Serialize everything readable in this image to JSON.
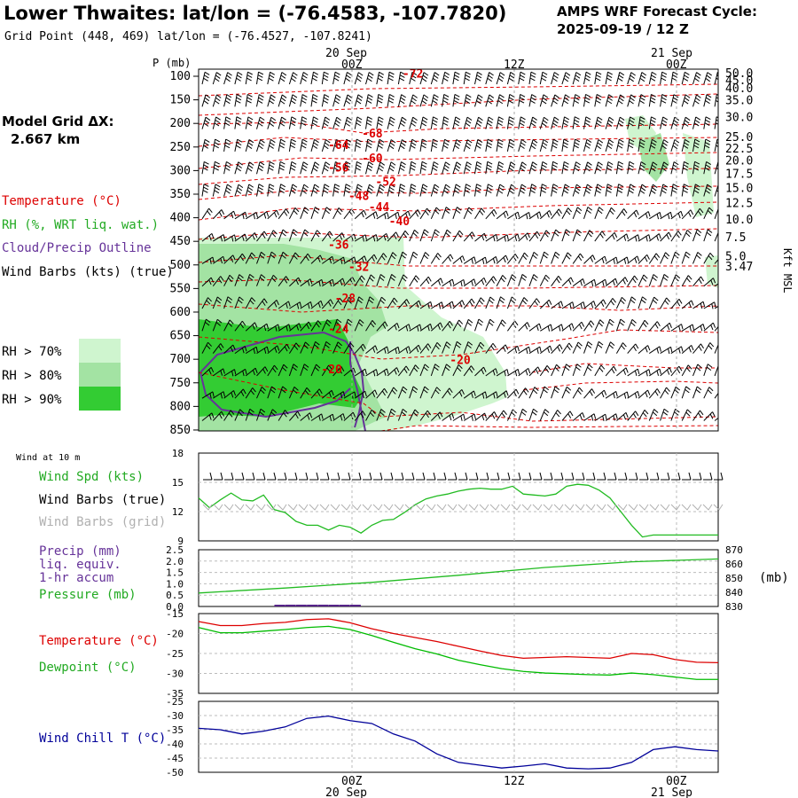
{
  "header": {
    "title": "Lower Thwaites:  lat/lon = (-76.4583, -107.7820)",
    "grid_point": "Grid Point (448, 469) lat/lon = (-76.4527, -107.8241)",
    "cycle_line1": "AMPS WRF Forecast Cycle:",
    "cycle_line2": "2025-09-19 / 12  Z"
  },
  "model_grid": {
    "label": "Model Grid ΔX:",
    "value": "2.667 km"
  },
  "legend": {
    "temperature": "Temperature (°C)",
    "rh": "RH (%, WRT liq. wat.)",
    "cloud": "Cloud/Precip Outline",
    "wind": "Wind Barbs (kts) (true)",
    "rh70": "RH > 70%",
    "rh80": "RH > 80%",
    "rh90": "RH > 90%"
  },
  "time_axis": {
    "top_dates": [
      "20 Sep",
      "21 Sep"
    ],
    "ticks": [
      "00Z",
      "12Z",
      "00Z"
    ],
    "bottom_dates": [
      "20 Sep",
      "21 Sep"
    ]
  },
  "colors": {
    "temperature": "#dd0000",
    "dewpoint": "#00bb00",
    "wind_speed": "#22bb22",
    "pressure": "#22bb22",
    "precip": "#552288",
    "wind_chill": "#000099",
    "rh70": "#cff5cf",
    "rh80": "#a3e3a3",
    "rh90": "#33cc33",
    "grid_barbs": "#b0b0b0"
  },
  "chart_data": [
    {
      "id": "cross_section",
      "type": "heatmap",
      "ylabel_left": "P (mb)",
      "ylabel_right": "Kft MSL",
      "pressure_ticks": [
        "100",
        "150",
        "200",
        "250",
        "300",
        "350",
        "400",
        "450",
        "500",
        "550",
        "600",
        "650",
        "700",
        "750",
        "800",
        "850"
      ],
      "height_ticks": [
        {
          "label": "50.0",
          "p": 100
        },
        {
          "label": "45.0",
          "p": 115
        },
        {
          "label": "40.0",
          "p": 132
        },
        {
          "label": "35.0",
          "p": 157
        },
        {
          "label": "30.0",
          "p": 193
        },
        {
          "label": "25.0",
          "p": 235
        },
        {
          "label": "22.5",
          "p": 260
        },
        {
          "label": "20.0",
          "p": 285
        },
        {
          "label": "17.5",
          "p": 313
        },
        {
          "label": "15.0",
          "p": 343
        },
        {
          "label": "12.5",
          "p": 375
        },
        {
          "label": "10.0",
          "p": 410
        },
        {
          "label": "7.5",
          "p": 448
        },
        {
          "label": "5.0",
          "p": 488
        },
        {
          "label": "3.47",
          "p": 510
        }
      ],
      "temperature_labels": [
        {
          "text": "-72",
          "t": 11.5,
          "p": 110
        },
        {
          "text": "-68",
          "t": 8.5,
          "p": 237
        },
        {
          "text": "-64",
          "t": 6.0,
          "p": 262
        },
        {
          "text": "-60",
          "t": 8.5,
          "p": 290
        },
        {
          "text": "-56",
          "t": 6.0,
          "p": 310
        },
        {
          "text": "-52",
          "t": 9.5,
          "p": 340
        },
        {
          "text": "-48",
          "t": 7.5,
          "p": 370
        },
        {
          "text": "-44",
          "t": 9.0,
          "p": 393
        },
        {
          "text": "-40",
          "t": 10.5,
          "p": 423
        },
        {
          "text": "-36",
          "t": 6.0,
          "p": 473
        },
        {
          "text": "-32",
          "t": 7.5,
          "p": 520
        },
        {
          "text": "-28",
          "t": 6.5,
          "p": 587
        },
        {
          "text": "-24",
          "t": 6.0,
          "p": 652
        },
        {
          "text": "-20",
          "t": 5.5,
          "p": 737
        },
        {
          "text": "-20",
          "t": 15.0,
          "p": 718
        }
      ]
    },
    {
      "id": "wind_10m",
      "type": "line",
      "title": "Wind at 10 m",
      "labels": [
        "Wind Spd (kts)",
        "Wind Barbs (true)",
        "Wind Barbs (grid)"
      ],
      "ylim": [
        9,
        18
      ],
      "yticks": [
        "18",
        "15",
        "12",
        "9"
      ],
      "x": [
        0,
        0.5,
        1,
        1.5,
        2,
        2.5,
        3,
        3.5,
        4,
        4.5,
        5,
        5.5,
        6,
        6.5,
        7,
        7.5,
        8,
        8.5,
        9,
        9.5,
        10,
        10.5,
        11,
        11.5,
        12,
        12.5,
        13,
        13.5,
        14,
        14.5,
        15,
        15.5,
        16,
        16.5,
        17,
        17.5,
        18,
        18.5,
        19,
        19.5,
        20,
        20.5,
        21,
        21.5,
        22,
        22.5,
        23,
        23.5,
        24
      ],
      "series": [
        {
          "name": "Wind Spd (kts)",
          "values": [
            13.4,
            12.4,
            13.2,
            13.9,
            13.2,
            13.1,
            13.7,
            12.2,
            11.9,
            11.0,
            10.6,
            10.6,
            10.1,
            10.6,
            10.4,
            9.8,
            10.6,
            11.1,
            11.2,
            11.9,
            12.7,
            13.3,
            13.6,
            13.8,
            14.1,
            14.3,
            14.4,
            14.3,
            14.3,
            14.6,
            13.8,
            13.7,
            13.6,
            13.8,
            14.6,
            14.8,
            14.7,
            14.2,
            13.4,
            12.0,
            10.6,
            9.4,
            9.6,
            9.6,
            9.6,
            9.6,
            9.6,
            9.6,
            9.6
          ]
        }
      ]
    },
    {
      "id": "precip_pressure",
      "type": "line",
      "labels": [
        "Precip (mm)",
        "liq. equiv.",
        "1-hr accum",
        "Pressure (mb)"
      ],
      "left_ylim": [
        0,
        2.5
      ],
      "left_yticks": [
        "2.5",
        "2.0",
        "1.5",
        "1.0",
        "0.5",
        "0.0"
      ],
      "right_ylim": [
        830,
        870
      ],
      "right_yticks": [
        "870",
        "860",
        "850",
        "840",
        "830"
      ],
      "right_unit": "(mb)",
      "x": [
        0,
        4,
        8,
        12,
        16,
        20,
        24
      ],
      "series": [
        {
          "name": "Pressure (mb)",
          "values": [
            839.5,
            843.0,
            847.0,
            852.0,
            857.5,
            861.5,
            863.5
          ]
        }
      ],
      "precip_bars": [
        {
          "t": 3.5,
          "mm": 0.05
        },
        {
          "t": 4.0,
          "mm": 0.08
        },
        {
          "t": 4.5,
          "mm": 0.08
        },
        {
          "t": 5.0,
          "mm": 0.08
        },
        {
          "t": 5.5,
          "mm": 0.08
        },
        {
          "t": 6.0,
          "mm": 0.05
        },
        {
          "t": 6.5,
          "mm": 0.04
        },
        {
          "t": 7.0,
          "mm": 0.03
        }
      ]
    },
    {
      "id": "temp_dewpoint",
      "type": "line",
      "labels": [
        "Temperature (°C)",
        "Dewpoint (°C)"
      ],
      "ylim": [
        -35,
        -15
      ],
      "yticks": [
        "-15",
        "-20",
        "-25",
        "-30",
        "-35"
      ],
      "x": [
        0,
        1,
        2,
        3,
        4,
        5,
        6,
        7,
        8,
        9,
        10,
        11,
        12,
        13,
        14,
        15,
        16,
        17,
        18,
        19,
        20,
        21,
        22,
        23,
        24
      ],
      "series": [
        {
          "name": "Temperature",
          "values": [
            -17.0,
            -18.0,
            -18.0,
            -17.5,
            -17.2,
            -16.5,
            -16.3,
            -17.3,
            -18.8,
            -20.0,
            -21.0,
            -22.0,
            -23.2,
            -24.4,
            -25.5,
            -26.2,
            -26.0,
            -25.8,
            -26.0,
            -26.2,
            -25.0,
            -25.3,
            -26.5,
            -27.2,
            -27.3
          ]
        },
        {
          "name": "Dewpoint",
          "values": [
            -18.5,
            -19.8,
            -19.8,
            -19.4,
            -19.0,
            -18.5,
            -18.2,
            -19.0,
            -20.5,
            -22.2,
            -23.8,
            -25.1,
            -26.7,
            -27.8,
            -28.8,
            -29.5,
            -29.9,
            -30.1,
            -30.3,
            -30.4,
            -29.9,
            -30.3,
            -30.9,
            -31.5,
            -31.5
          ]
        }
      ]
    },
    {
      "id": "wind_chill",
      "type": "line",
      "labels": [
        "Wind Chill T (°C)"
      ],
      "ylim": [
        -50,
        -25
      ],
      "yticks": [
        "-25",
        "-30",
        "-35",
        "-40",
        "-45",
        "-50"
      ],
      "x": [
        0,
        1,
        2,
        3,
        4,
        5,
        6,
        7,
        8,
        9,
        10,
        11,
        12,
        13,
        14,
        15,
        16,
        17,
        18,
        19,
        20,
        21,
        22,
        23,
        24
      ],
      "series": [
        {
          "name": "Wind Chill T",
          "values": [
            -34.5,
            -35.0,
            -36.5,
            -35.5,
            -34.0,
            -31.0,
            -30.2,
            -31.8,
            -32.8,
            -36.5,
            -39.0,
            -43.5,
            -46.5,
            -47.5,
            -48.5,
            -47.8,
            -47.0,
            -48.5,
            -48.8,
            -48.5,
            -46.5,
            -42.0,
            -41.0,
            -42.0,
            -42.5
          ]
        }
      ]
    }
  ]
}
